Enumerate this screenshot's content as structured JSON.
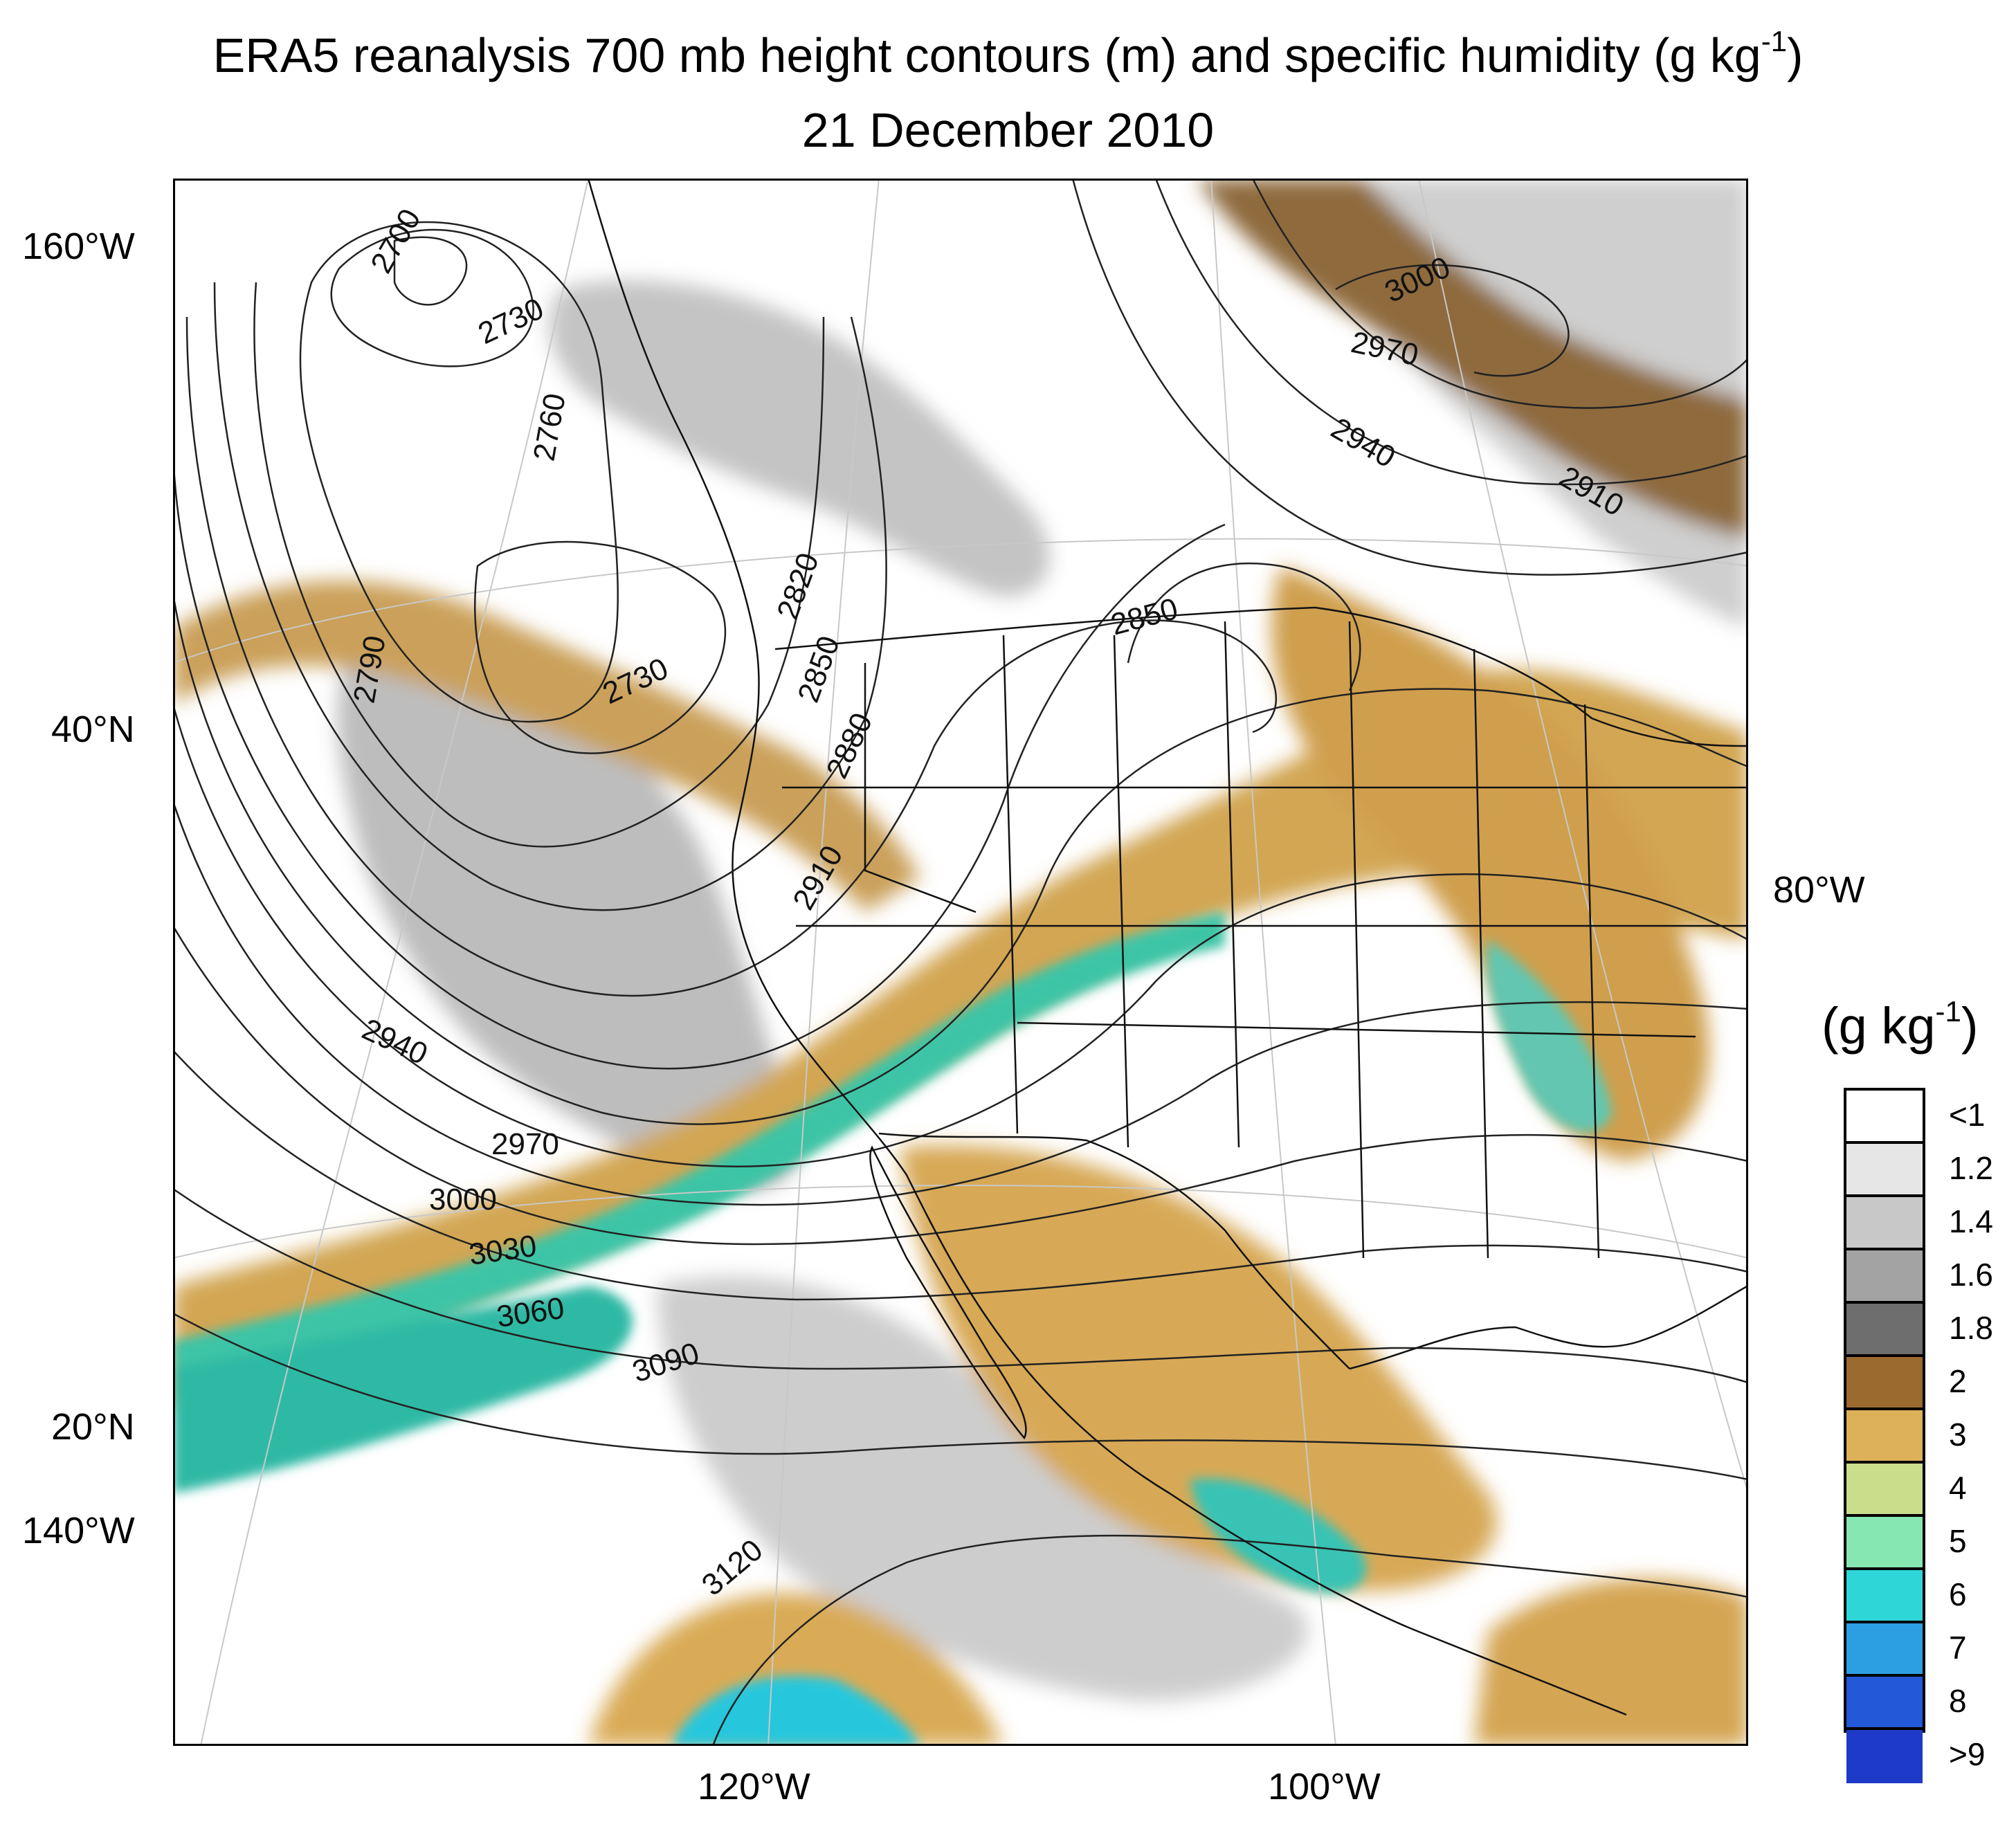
{
  "title": {
    "line1_main": "ERA5 reanalysis 700 mb height contours (m) and specific humidity (g kg",
    "line1_sup": "-1",
    "line1_end": ")",
    "line2": "21 December 2010"
  },
  "axes": {
    "left": [
      "160°W",
      "40°N",
      "20°N",
      "140°W"
    ],
    "bottom": [
      "120°W",
      "100°W"
    ],
    "right": [
      "80°W"
    ]
  },
  "contour_labels": [
    "2700",
    "2730",
    "2760",
    "2790",
    "2730",
    "2820",
    "2850",
    "2880",
    "2910",
    "2850",
    "3000",
    "2970",
    "2940",
    "2910",
    "2940",
    "2970",
    "3000",
    "3030",
    "3060",
    "3090",
    "3120"
  ],
  "legend": {
    "title_main": "(g kg",
    "title_sup": "-1",
    "title_end": ")",
    "labels": [
      "<1",
      "1.2",
      "1.4",
      "1.6",
      "1.8",
      "2",
      "3",
      "4",
      "5",
      "6",
      "7",
      "8",
      ">9"
    ],
    "colors": [
      "#ffffff",
      "#e6e6e6",
      "#c8c8c8",
      "#a3a3a3",
      "#6e6e6e",
      "#9b6a2e",
      "#ddb15a",
      "#c9dd8a",
      "#86e7b2",
      "#2fd6d8",
      "#2c9fe2",
      "#2358d8",
      "#1e3ac8"
    ]
  }
}
